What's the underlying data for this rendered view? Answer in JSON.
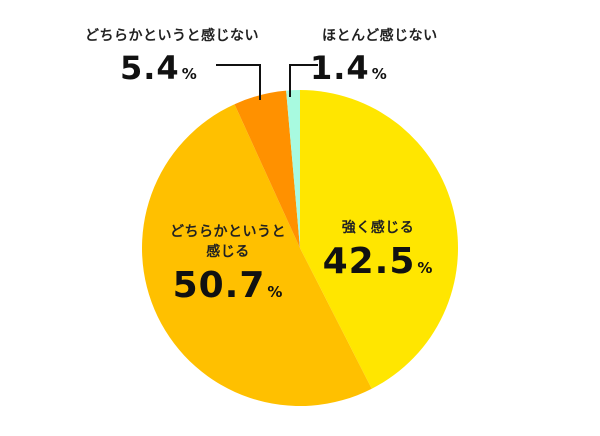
{
  "chart_data": {
    "type": "pie",
    "title": "",
    "center": [
      300,
      248
    ],
    "radius": 158,
    "start_angle_deg": 0,
    "direction": "clockwise",
    "slices": [
      {
        "label": "強く感じる",
        "value": 42.5,
        "color": "#FFE600"
      },
      {
        "label": "どちらかというと感じる",
        "value": 50.7,
        "color": "#FFC000"
      },
      {
        "label": "どちらかというと感じない",
        "value": 5.4,
        "color": "#FF9100"
      },
      {
        "label": "ほとんど感じない",
        "value": 1.4,
        "color": "#A8FAE0"
      }
    ],
    "unit": "%"
  },
  "labels": {
    "strong": {
      "category": "強く感じる",
      "value": "42.5",
      "unit": "%"
    },
    "somewhat_feel": {
      "line1": "どちらかというと",
      "line2": "感じる",
      "value": "50.7",
      "unit": "%"
    },
    "somewhat_not": {
      "category": "どちらかというと感じない",
      "value": "5.4",
      "unit": "%"
    },
    "hardly": {
      "category": "ほとんど感じない",
      "value": "1.4",
      "unit": "%"
    }
  }
}
